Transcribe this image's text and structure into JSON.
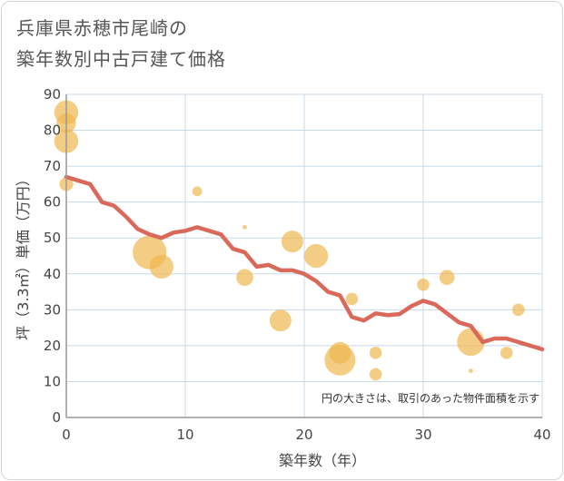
{
  "title_lines": [
    "兵庫県赤穂市尾崎の",
    "築年数別中古戸建て価格"
  ],
  "chart_data": {
    "type": "scatter",
    "title": "兵庫県赤穂市尾崎の築年数別中古戸建て価格",
    "xlabel": "築年数（年）",
    "ylabel": "坪（3.3㎡）単価（万円）",
    "xlim": [
      0,
      40
    ],
    "ylim": [
      0,
      90
    ],
    "xticks": [
      0,
      10,
      20,
      30,
      40
    ],
    "yticks": [
      0,
      10,
      20,
      30,
      40,
      50,
      60,
      70,
      80,
      90
    ],
    "grid": true,
    "note": "円の大きさは、取引のあった物件面積を示す",
    "colors": {
      "bubble": "#f0b850",
      "line": "#d9695a",
      "grid": "#c8d8e8",
      "axis": "#999999"
    },
    "points": [
      {
        "x": 0,
        "y": 85,
        "size": 3
      },
      {
        "x": 0,
        "y": 82,
        "size": 2
      },
      {
        "x": 0,
        "y": 77,
        "size": 3
      },
      {
        "x": 0,
        "y": 65,
        "size": 1
      },
      {
        "x": 7,
        "y": 46,
        "size": 6
      },
      {
        "x": 8,
        "y": 42,
        "size": 3
      },
      {
        "x": 11,
        "y": 63,
        "size": 0.5
      },
      {
        "x": 15,
        "y": 53,
        "size": 0.1
      },
      {
        "x": 15,
        "y": 39,
        "size": 1.5
      },
      {
        "x": 18,
        "y": 27,
        "size": 2.5
      },
      {
        "x": 19,
        "y": 49,
        "size": 2.5
      },
      {
        "x": 21,
        "y": 45,
        "size": 3
      },
      {
        "x": 23,
        "y": 16,
        "size": 5
      },
      {
        "x": 23,
        "y": 18,
        "size": 2.5
      },
      {
        "x": 24,
        "y": 33,
        "size": 0.8
      },
      {
        "x": 26,
        "y": 18,
        "size": 0.8
      },
      {
        "x": 26,
        "y": 12,
        "size": 0.8
      },
      {
        "x": 30,
        "y": 37,
        "size": 0.8
      },
      {
        "x": 32,
        "y": 39,
        "size": 1.2
      },
      {
        "x": 34,
        "y": 21,
        "size": 4
      },
      {
        "x": 34,
        "y": 13,
        "size": 0.1
      },
      {
        "x": 37,
        "y": 18,
        "size": 0.8
      },
      {
        "x": 38,
        "y": 30,
        "size": 0.8
      }
    ],
    "trend": {
      "x": [
        0,
        1,
        2,
        3,
        4,
        5,
        6,
        7,
        8,
        9,
        10,
        11,
        12,
        13,
        14,
        15,
        16,
        17,
        18,
        19,
        20,
        21,
        22,
        23,
        24,
        25,
        26,
        27,
        28,
        29,
        30,
        31,
        32,
        33,
        34,
        35,
        36,
        37,
        38,
        39,
        40
      ],
      "y": [
        67,
        66,
        65,
        60,
        59,
        56,
        52.5,
        51,
        50,
        51.5,
        52,
        53,
        52,
        51,
        47,
        46,
        42,
        42.5,
        41,
        41,
        40,
        38,
        35,
        34,
        28,
        27,
        29,
        28.5,
        28.8,
        31,
        32.5,
        31.5,
        29,
        26.5,
        25.5,
        21,
        22,
        22,
        21,
        20,
        19
      ]
    }
  }
}
